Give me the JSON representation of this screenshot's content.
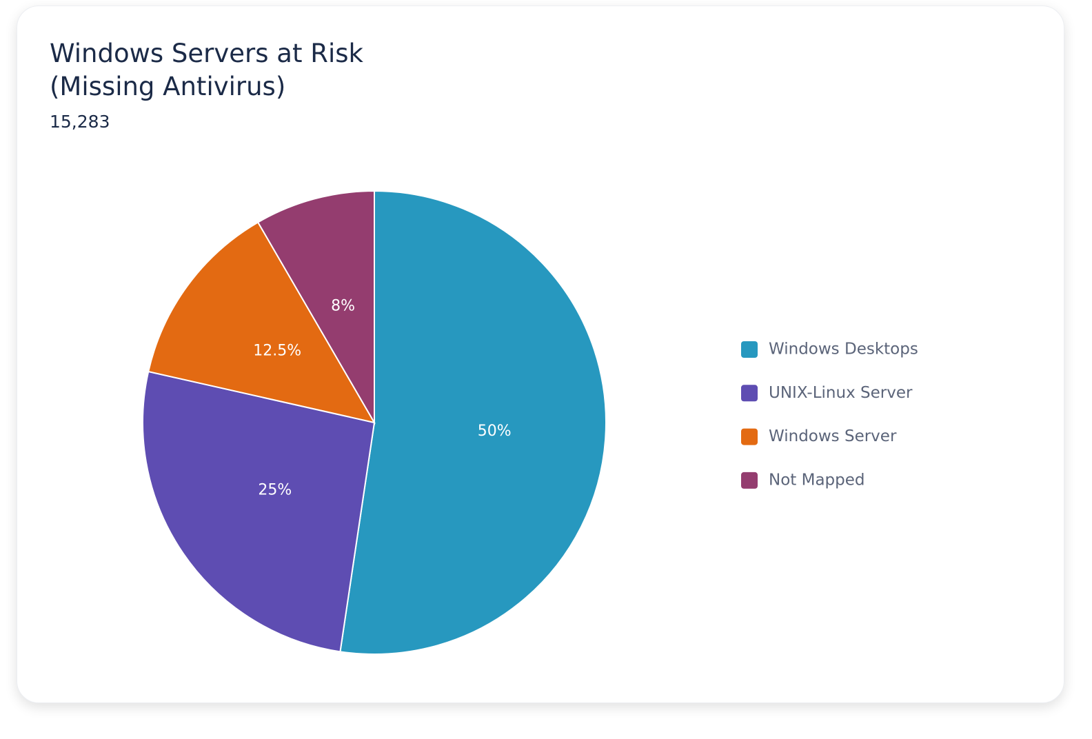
{
  "chart_data": {
    "type": "pie",
    "title": "Windows Servers at Risk (Missing Antivirus)",
    "subtitle": "15,283",
    "categories": [
      "Windows Desktops",
      "UNIX-Linux Server",
      "Windows Server",
      "Not Mapped"
    ],
    "values": [
      50,
      25,
      12.5,
      8
    ],
    "value_labels": [
      "50%",
      "25%",
      "12.5%",
      "8%"
    ],
    "colors": [
      "#2798bf",
      "#5e4db2",
      "#e36a12",
      "#943d6f"
    ],
    "legend": "right"
  }
}
